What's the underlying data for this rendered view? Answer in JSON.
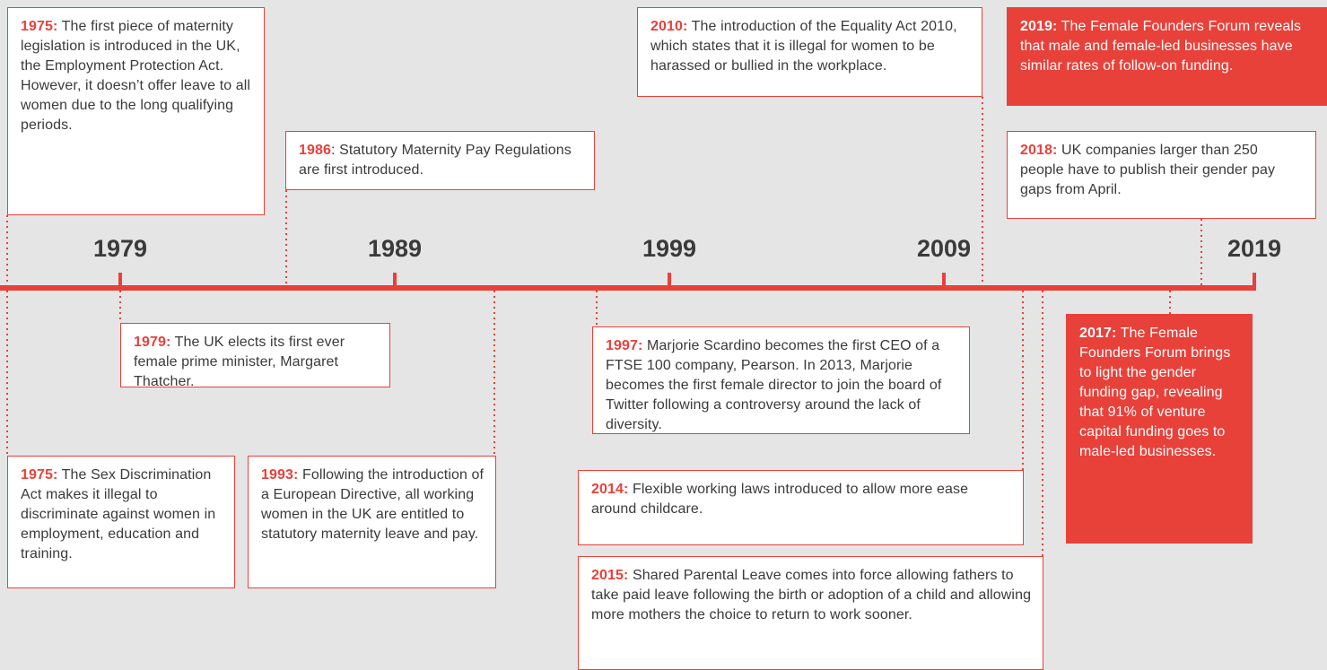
{
  "axis": {
    "labels": [
      "1979",
      "1989",
      "1999",
      "2009",
      "2019"
    ]
  },
  "events": [
    {
      "year": "1975:",
      "text": " The first piece of maternity legislation is introduced in the UK, the Employment Protection Act. However, it doesn’t offer leave to all women due to the long qualifying periods."
    },
    {
      "year": "1986",
      "text": ": Statutory Maternity Pay Regulations are first introduced."
    },
    {
      "year": "2010:",
      "text": " The introduction of the Equality Act 2010, which states that it is illegal for women to be harassed or bullied in the workplace."
    },
    {
      "year": "2019:",
      "text": " The Female Founders Forum reveals that male and female-led businesses have similar rates of follow-on funding."
    },
    {
      "year": "2018:",
      "text": " UK companies larger than 250 people have to publish their gender pay gaps from April."
    },
    {
      "year": "1979:",
      "text": " The UK elects its first ever female prime minister, Margaret Thatcher."
    },
    {
      "year": "1975:",
      "text": " The Sex Discrimination Act makes it illegal to discriminate against women in employment, education and training."
    },
    {
      "year": "1993:",
      "text": " Following the introduction of a European Directive, all working women in the UK are entitled to statutory maternity leave and pay."
    },
    {
      "year": "1997:",
      "text": " Marjorie Scardino becomes the first CEO of a FTSE 100 company, Pearson. In 2013, Marjorie becomes the first female director to join the board of Twitter following a controversy around the lack of diversity."
    },
    {
      "year": "2014:",
      "text": " Flexible working laws introduced to allow more ease around childcare."
    },
    {
      "year": "2015:",
      "text": " Shared Parental Leave comes into force allowing fathers to take paid leave following the birth or adoption of a child and allowing more mothers the choice to return to work sooner."
    },
    {
      "year": "2017:",
      "text": " The Female Founders Forum brings to light the gender funding gap, revealing that 91% of venture capital funding goes to male-led businesses."
    }
  ]
}
